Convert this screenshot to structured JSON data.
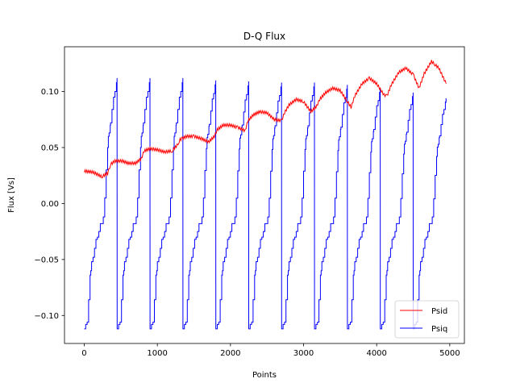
{
  "chart_data": {
    "type": "line",
    "title": "D-Q Flux",
    "xlabel": "Points",
    "ylabel": "Flux [Vs]",
    "xlim": [
      -270,
      5200
    ],
    "ylim": [
      -0.125,
      0.14
    ],
    "xticks": [
      0,
      1000,
      2000,
      3000,
      4000,
      5000
    ],
    "xtick_labels": [
      "0",
      "1000",
      "2000",
      "3000",
      "4000",
      "5000"
    ],
    "yticks": [
      -0.1,
      -0.05,
      0.0,
      0.05,
      0.1
    ],
    "ytick_labels": [
      "−0.10",
      "−0.05",
      "0.00",
      "0.05",
      "0.10"
    ],
    "grid": false,
    "legend_position": "lower-right",
    "series": [
      {
        "name": "Psid",
        "color": "#ff0000",
        "x": [
          0,
          120,
          240,
          320,
          360,
          420,
          520,
          600,
          700,
          780,
          820,
          900,
          1000,
          1100,
          1200,
          1270,
          1310,
          1400,
          1500,
          1600,
          1700,
          1780,
          1820,
          1900,
          2000,
          2100,
          2200,
          2240,
          2310,
          2400,
          2500,
          2600,
          2700,
          2740,
          2800,
          2900,
          3000,
          3100,
          3180,
          3220,
          3300,
          3400,
          3500,
          3600,
          3650,
          3700,
          3800,
          3900,
          4000,
          4100,
          4140,
          4200,
          4300,
          4400,
          4500,
          4580,
          4650,
          4750,
          4850,
          4950
        ],
        "y": [
          0.029,
          0.028,
          0.024,
          0.027,
          0.035,
          0.038,
          0.038,
          0.036,
          0.036,
          0.04,
          0.047,
          0.049,
          0.048,
          0.046,
          0.047,
          0.052,
          0.057,
          0.06,
          0.06,
          0.058,
          0.055,
          0.06,
          0.066,
          0.07,
          0.07,
          0.068,
          0.065,
          0.074,
          0.079,
          0.082,
          0.081,
          0.075,
          0.074,
          0.081,
          0.088,
          0.093,
          0.091,
          0.082,
          0.087,
          0.093,
          0.099,
          0.103,
          0.101,
          0.091,
          0.086,
          0.096,
          0.107,
          0.112,
          0.107,
          0.097,
          0.096,
          0.106,
          0.117,
          0.121,
          0.115,
          0.103,
          0.116,
          0.127,
          0.121,
          0.107
        ]
      },
      {
        "name": "Psiq",
        "color": "#0000ff",
        "period": 450,
        "first_drop_x": 450,
        "last_x": 4950,
        "start_y": -0.112,
        "steps_x": [
          0,
          20,
          40,
          60,
          80,
          90,
          100,
          120,
          140,
          160,
          180,
          200,
          220,
          260,
          280,
          300,
          320,
          330,
          340,
          355,
          360,
          380,
          400,
          420,
          440,
          449
        ],
        "steps_y": [
          -0.112,
          -0.108,
          -0.106,
          -0.086,
          -0.064,
          -0.06,
          -0.052,
          -0.048,
          -0.04,
          -0.032,
          -0.03,
          -0.025,
          -0.018,
          -0.012,
          0.005,
          0.03,
          0.05,
          0.06,
          0.063,
          0.07,
          0.072,
          0.084,
          0.095,
          0.1,
          0.108,
          0.112
        ],
        "peak_y_per_cycle": [
          0.112,
          0.112,
          0.112,
          0.11,
          0.109,
          0.108,
          0.108,
          0.106,
          0.103,
          0.099,
          0.094
        ],
        "final_y": 0.09
      }
    ]
  }
}
